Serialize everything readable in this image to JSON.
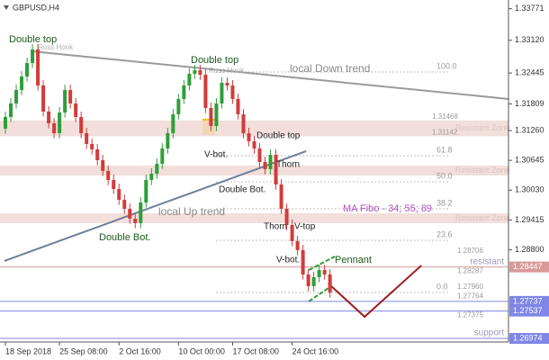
{
  "chart_data": {
    "type": "candlestick",
    "title": "GBPUSD,H4",
    "xlim": [
      -1,
      93
    ],
    "ylim": [
      1.269,
      1.3395
    ],
    "xticks": [
      {
        "value": 0,
        "label": "18 Sep 2018"
      },
      {
        "value": 10,
        "label": "25 Sep 08:00"
      },
      {
        "value": 21,
        "label": "2 Oct 16:00"
      },
      {
        "value": 32,
        "label": "10 Oct 00:00"
      },
      {
        "value": 42,
        "label": "17 Oct 08:00"
      },
      {
        "value": 53,
        "label": "24 Oct 16:00"
      }
    ],
    "yticks": [
      {
        "value": 1.33771,
        "label": "1.33771"
      },
      {
        "value": 1.3312,
        "label": "1.33120"
      },
      {
        "value": 1.32445,
        "label": "1.32445"
      },
      {
        "value": 1.31809,
        "label": "1.31809"
      },
      {
        "value": 1.3126,
        "label": "1.31260"
      },
      {
        "value": 1.30645,
        "label": "1.30645"
      },
      {
        "value": 1.3003,
        "label": "1.30030"
      },
      {
        "value": 1.29415,
        "label": "1.29415"
      },
      {
        "value": 1.288,
        "label": "1.28800"
      }
    ],
    "up_color": "#2e9e3a",
    "down_color": "#d23b3b",
    "candles": {
      "open": [
        1.313,
        1.31539,
        1.31817,
        1.32095,
        1.32373,
        1.32652,
        1.3293,
        1.32188,
        1.3165,
        1.31409,
        1.31205,
        1.31631,
        1.32095,
        1.31817,
        1.31539,
        1.31205,
        1.30982,
        1.30871,
        1.30648,
        1.30426,
        1.3024,
        1.30055,
        1.29832,
        1.29646,
        1.29442,
        1.2935,
        1.29776,
        1.3024,
        1.3037,
        1.30574,
        1.30889,
        1.31205,
        1.31594,
        1.3191,
        1.32188,
        1.32429,
        1.32503,
        1.3241,
        1.31724,
        1.31353,
        1.31817,
        1.32243,
        1.32188,
        1.3191,
        1.31594,
        1.31205,
        1.31038,
        1.30889,
        1.30611,
        1.30463,
        1.30759,
        1.30147,
        1.29646,
        1.29312,
        1.28979,
        1.28793,
        1.28292,
        1.28051,
        1.28237,
        1.28385,
        1.28292
      ],
      "high": [
        1.31649,
        1.31927,
        1.32205,
        1.32483,
        1.32762,
        1.3304,
        1.3304,
        1.32298,
        1.3176,
        1.31519,
        1.31741,
        1.32205,
        1.32205,
        1.31927,
        1.31649,
        1.31315,
        1.31092,
        1.30981,
        1.30758,
        1.30536,
        1.3035,
        1.30165,
        1.29942,
        1.29756,
        1.29552,
        1.29886,
        1.3035,
        1.3048,
        1.30684,
        1.30999,
        1.31315,
        1.31704,
        1.3202,
        1.32298,
        1.32539,
        1.32613,
        1.32613,
        1.3252,
        1.31834,
        1.31927,
        1.32353,
        1.32353,
        1.32298,
        1.3202,
        1.31704,
        1.31315,
        1.31148,
        1.30999,
        1.30721,
        1.30869,
        1.30869,
        1.30257,
        1.29756,
        1.29422,
        1.29089,
        1.28903,
        1.28402,
        1.28347,
        1.28495,
        1.28495,
        1.28402
      ],
      "low": [
        1.31195,
        1.31434,
        1.31712,
        1.3199,
        1.32268,
        1.32547,
        1.32083,
        1.31545,
        1.31304,
        1.311,
        1.311,
        1.31526,
        1.31712,
        1.31434,
        1.311,
        1.30877,
        1.30766,
        1.30543,
        1.30321,
        1.30135,
        1.2995,
        1.29727,
        1.29541,
        1.29337,
        1.29245,
        1.29245,
        1.29671,
        1.30135,
        1.30265,
        1.30469,
        1.30784,
        1.311,
        1.31489,
        1.31805,
        1.32083,
        1.32324,
        1.32305,
        1.31619,
        1.31248,
        1.31248,
        1.31712,
        1.32083,
        1.31805,
        1.31489,
        1.311,
        1.30933,
        1.30784,
        1.30506,
        1.30358,
        1.30358,
        1.30042,
        1.29541,
        1.29207,
        1.28874,
        1.28688,
        1.28187,
        1.27946,
        1.27946,
        1.28132,
        1.28187,
        1.27816
      ],
      "close": [
        1.31539,
        1.31817,
        1.32095,
        1.32373,
        1.32652,
        1.3293,
        1.32188,
        1.3165,
        1.31409,
        1.31205,
        1.31631,
        1.32095,
        1.31817,
        1.31539,
        1.31205,
        1.30982,
        1.30871,
        1.30648,
        1.30426,
        1.3024,
        1.30055,
        1.29832,
        1.29646,
        1.29442,
        1.2935,
        1.29776,
        1.3024,
        1.3037,
        1.30574,
        1.30889,
        1.31205,
        1.31594,
        1.3191,
        1.32188,
        1.32429,
        1.32503,
        1.3241,
        1.31724,
        1.31353,
        1.31817,
        1.32243,
        1.32188,
        1.3191,
        1.31594,
        1.31205,
        1.31038,
        1.30889,
        1.30611,
        1.30463,
        1.30759,
        1.30147,
        1.29646,
        1.29312,
        1.28979,
        1.28793,
        1.28292,
        1.28051,
        1.28237,
        1.28385,
        1.28292,
        1.27921
      ]
    },
    "trendlines": [
      {
        "name": "local Down trend",
        "color": "#9a9a9a",
        "x": [
          4.8,
          93
        ],
        "y": [
          1.32893,
          1.3191
        ]
      },
      {
        "name": "local  Up trend",
        "color": "#6f7f98",
        "x": [
          -0.2,
          55.6
        ],
        "y": [
          1.28571,
          1.30834
        ]
      },
      {
        "color": "#2e9e3a",
        "x": [
          56.1,
          60.9
        ],
        "y": [
          1.28385,
          1.28663
        ]
      },
      {
        "color": "#2e9e3a",
        "x": [
          56.1,
          60.2
        ],
        "y": [
          1.27736,
          1.28051
        ]
      },
      {
        "color": "#9b1c1c",
        "x": [
          59.7,
          66.4,
          76.9
        ],
        "y": [
          1.28107,
          1.2742,
          1.28478
        ]
      }
    ],
    "fibo": [
      {
        "ratio": {
          "value": 100,
          "label": "100.0"
        },
        "price": 1.32466
      },
      {
        "ratio": 61.8,
        "price": 1.30741
      },
      {
        "ratio": {
          "value": 50,
          "label": "50.0"
        },
        "price": 1.30203
      },
      {
        "ratio": 38.2,
        "price": 1.29646
      },
      {
        "ratio": 23.6,
        "price": 1.28997
      },
      {
        "ratio": {
          "value": 0,
          "label": "0.0"
        },
        "price": 1.27921
      }
    ],
    "zones": [
      {
        "name": "Resistant Zone",
        "top": 1.31468,
        "bottom": 1.31142
      },
      {
        "name": "Resistant Zone",
        "top": 1.30537,
        "bottom": 1.30333
      },
      {
        "name": "Resistant Zone",
        "top": 1.29554,
        "bottom": 1.2935
      }
    ],
    "levels": [
      {
        "value": 1.28447,
        "label": "1.28447",
        "name": "resistant",
        "color": "#d99a9a"
      },
      {
        "value": 1.27737,
        "label": "1.27737",
        "color": "#7f86e6"
      },
      {
        "value": 1.27537,
        "label": "1.27537",
        "color": "#7f86e6"
      },
      {
        "value": 1.26974,
        "label": "1.26974",
        "name": "support",
        "color": "#7f86e6"
      }
    ],
    "price_notes": [
      {
        "value": 1.31468,
        "label": "1.31468"
      },
      {
        "value": 1.31142,
        "label": "1.31142"
      },
      {
        "value": 1.28706,
        "label": "1.28706"
      },
      {
        "value": 1.28287,
        "label": "1.28287"
      },
      {
        "value": 1.2796,
        "label": "1.27960"
      },
      {
        "value": 1.27764,
        "label": "1.27764"
      },
      {
        "value": 1.27375,
        "label": "1.27375"
      }
    ],
    "annotations": [
      "Double top",
      "Ross Hook",
      "Double top",
      "Ross Hook",
      "V-bot.",
      "Double top",
      "Thorn",
      "Double Bot.",
      "Double Bot.",
      "MA Fibo - 34; 55; 89",
      "Thorn",
      "V-top",
      "V-bot.",
      "Pennant"
    ]
  }
}
